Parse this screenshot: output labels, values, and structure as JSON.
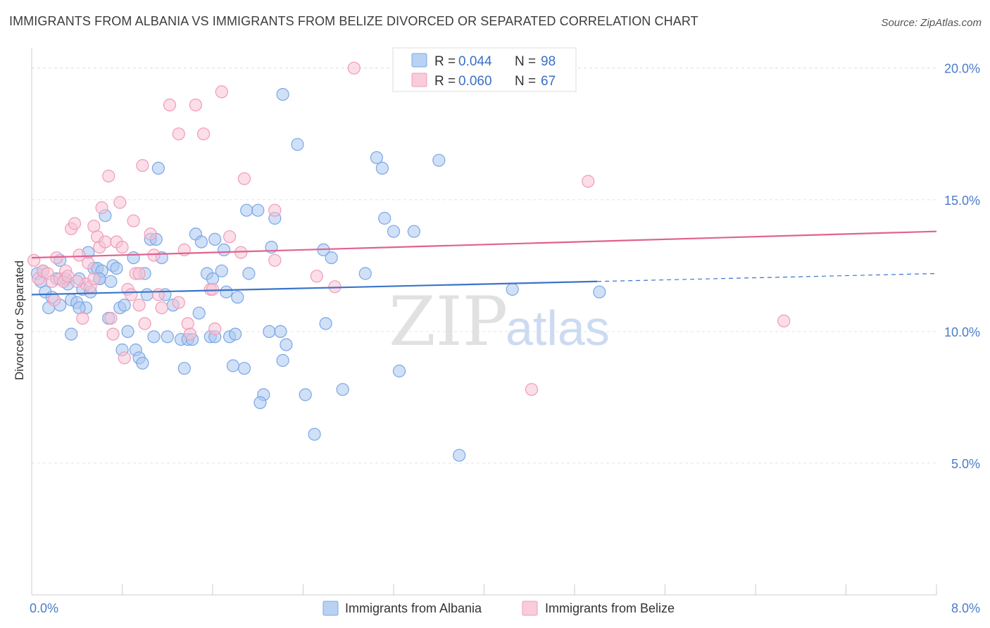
{
  "header": {
    "title": "IMMIGRANTS FROM ALBANIA VS IMMIGRANTS FROM BELIZE DIVORCED OR SEPARATED CORRELATION CHART",
    "source": "Source: ZipAtlas.com"
  },
  "watermark": {
    "zip": "ZIP",
    "atlas": "atlas"
  },
  "chart_data": {
    "type": "scatter",
    "ylabel": "Divorced or Separated",
    "xlim": [
      0,
      8
    ],
    "ylim": [
      0,
      20
    ],
    "x_tick_labels": [
      {
        "value": 0,
        "label": "0.0%"
      },
      {
        "value": 8,
        "label": "8.0%"
      }
    ],
    "y_tick_labels": [
      {
        "value": 5,
        "label": "5.0%"
      },
      {
        "value": 10,
        "label": "10.0%"
      },
      {
        "value": 15,
        "label": "15.0%"
      },
      {
        "value": 20,
        "label": "20.0%"
      }
    ],
    "grid": true,
    "legend_position": "top-center",
    "legend": [
      {
        "r_label": "R = ",
        "r_value": "0.044",
        "n_label": "N = ",
        "n_value": "98"
      },
      {
        "r_label": "R = ",
        "r_value": "0.060",
        "n_label": "N = ",
        "n_value": "67"
      }
    ],
    "series": [
      {
        "name": "Immigrants from Albania",
        "color": "#7aa7e6",
        "fill": "#a9c6f0",
        "line_color": "#3a74c9",
        "trend": {
          "x0": 0,
          "y0": 11.4,
          "x1": 5.0,
          "y1": 11.9,
          "dash_to_x": 8.0,
          "dash_to_y": 12.2
        },
        "points": [
          [
            0.05,
            12.2
          ],
          [
            0.08,
            11.9
          ],
          [
            0.1,
            12.3
          ],
          [
            0.12,
            11.5
          ],
          [
            0.15,
            10.9
          ],
          [
            0.18,
            11.3
          ],
          [
            0.22,
            12.0
          ],
          [
            0.25,
            12.7
          ],
          [
            0.25,
            11.0
          ],
          [
            0.3,
            12.0
          ],
          [
            0.32,
            11.8
          ],
          [
            0.35,
            11.2
          ],
          [
            0.35,
            9.9
          ],
          [
            0.4,
            11.1
          ],
          [
            0.42,
            12.0
          ],
          [
            0.45,
            11.6
          ],
          [
            0.48,
            10.9
          ],
          [
            0.5,
            13.0
          ],
          [
            0.52,
            11.5
          ],
          [
            0.55,
            12.4
          ],
          [
            0.58,
            12.4
          ],
          [
            0.6,
            12.0
          ],
          [
            0.62,
            12.3
          ],
          [
            0.65,
            14.4
          ],
          [
            0.68,
            10.5
          ],
          [
            0.72,
            12.5
          ],
          [
            0.75,
            12.4
          ],
          [
            0.78,
            10.9
          ],
          [
            0.8,
            9.3
          ],
          [
            0.82,
            11.0
          ],
          [
            0.85,
            10.0
          ],
          [
            0.9,
            12.8
          ],
          [
            0.92,
            9.3
          ],
          [
            0.95,
            9.0
          ],
          [
            0.98,
            8.8
          ],
          [
            1.0,
            12.2
          ],
          [
            1.02,
            11.4
          ],
          [
            1.05,
            13.5
          ],
          [
            1.08,
            9.8
          ],
          [
            1.1,
            13.5
          ],
          [
            1.12,
            16.2
          ],
          [
            1.15,
            12.8
          ],
          [
            1.18,
            11.4
          ],
          [
            1.2,
            9.8
          ],
          [
            1.25,
            11.0
          ],
          [
            1.32,
            9.7
          ],
          [
            1.35,
            8.6
          ],
          [
            1.38,
            9.7
          ],
          [
            1.42,
            9.7
          ],
          [
            1.45,
            13.7
          ],
          [
            1.48,
            10.7
          ],
          [
            1.5,
            13.4
          ],
          [
            1.55,
            12.2
          ],
          [
            1.58,
            9.8
          ],
          [
            1.6,
            12.0
          ],
          [
            1.62,
            13.5
          ],
          [
            1.68,
            12.3
          ],
          [
            1.7,
            13.1
          ],
          [
            1.72,
            11.5
          ],
          [
            1.75,
            9.8
          ],
          [
            1.78,
            8.7
          ],
          [
            1.8,
            9.9
          ],
          [
            1.82,
            11.3
          ],
          [
            1.88,
            8.6
          ],
          [
            1.9,
            14.6
          ],
          [
            1.92,
            12.2
          ],
          [
            2.0,
            14.6
          ],
          [
            2.05,
            7.6
          ],
          [
            2.02,
            7.3
          ],
          [
            2.1,
            10.0
          ],
          [
            2.12,
            13.2
          ],
          [
            2.15,
            14.3
          ],
          [
            2.2,
            10.0
          ],
          [
            2.22,
            8.9
          ],
          [
            2.25,
            9.5
          ],
          [
            2.22,
            19.0
          ],
          [
            2.35,
            17.1
          ],
          [
            2.42,
            7.6
          ],
          [
            2.5,
            6.1
          ],
          [
            2.58,
            13.1
          ],
          [
            2.6,
            10.3
          ],
          [
            2.65,
            12.8
          ],
          [
            2.75,
            7.8
          ],
          [
            2.95,
            12.2
          ],
          [
            3.05,
            16.6
          ],
          [
            3.1,
            16.2
          ],
          [
            3.12,
            14.3
          ],
          [
            3.2,
            13.8
          ],
          [
            3.25,
            8.5
          ],
          [
            3.38,
            13.8
          ],
          [
            3.6,
            16.5
          ],
          [
            3.78,
            5.3
          ],
          [
            4.25,
            11.6
          ],
          [
            5.02,
            11.5
          ],
          [
            1.62,
            9.8
          ],
          [
            0.7,
            11.9
          ],
          [
            0.6,
            12.0
          ],
          [
            0.42,
            10.9
          ]
        ]
      },
      {
        "name": "Immigrants from Belize",
        "color": "#f09bb8",
        "fill": "#f7c3d4",
        "line_color": "#e0628f",
        "trend": {
          "x0": 0,
          "y0": 12.8,
          "x1": 8.0,
          "y1": 13.8
        },
        "points": [
          [
            0.02,
            12.7
          ],
          [
            0.06,
            12.0
          ],
          [
            0.1,
            12.3
          ],
          [
            0.14,
            12.2
          ],
          [
            0.18,
            11.9
          ],
          [
            0.22,
            12.8
          ],
          [
            0.25,
            12.0
          ],
          [
            0.28,
            11.9
          ],
          [
            0.3,
            12.3
          ],
          [
            0.35,
            13.9
          ],
          [
            0.38,
            14.1
          ],
          [
            0.42,
            12.9
          ],
          [
            0.45,
            10.5
          ],
          [
            0.48,
            11.8
          ],
          [
            0.5,
            12.6
          ],
          [
            0.52,
            11.7
          ],
          [
            0.55,
            14.0
          ],
          [
            0.58,
            13.6
          ],
          [
            0.6,
            13.2
          ],
          [
            0.62,
            14.7
          ],
          [
            0.65,
            13.4
          ],
          [
            0.68,
            15.9
          ],
          [
            0.7,
            10.5
          ],
          [
            0.72,
            9.9
          ],
          [
            0.75,
            13.4
          ],
          [
            0.78,
            14.9
          ],
          [
            0.8,
            13.2
          ],
          [
            0.82,
            9.0
          ],
          [
            0.85,
            11.6
          ],
          [
            0.88,
            11.4
          ],
          [
            0.9,
            14.2
          ],
          [
            0.92,
            12.2
          ],
          [
            0.95,
            11.0
          ],
          [
            0.98,
            16.3
          ],
          [
            1.0,
            10.3
          ],
          [
            1.05,
            13.7
          ],
          [
            1.08,
            12.9
          ],
          [
            1.12,
            11.4
          ],
          [
            1.15,
            10.9
          ],
          [
            1.22,
            18.6
          ],
          [
            1.3,
            17.5
          ],
          [
            1.35,
            13.1
          ],
          [
            1.38,
            10.3
          ],
          [
            1.4,
            9.9
          ],
          [
            1.45,
            18.6
          ],
          [
            1.52,
            17.5
          ],
          [
            1.58,
            11.6
          ],
          [
            1.62,
            10.1
          ],
          [
            1.68,
            19.1
          ],
          [
            1.75,
            13.6
          ],
          [
            1.85,
            13.0
          ],
          [
            1.88,
            15.8
          ],
          [
            2.15,
            12.7
          ],
          [
            2.15,
            14.6
          ],
          [
            2.52,
            12.1
          ],
          [
            2.68,
            11.7
          ],
          [
            2.85,
            20.0
          ],
          [
            4.42,
            7.8
          ],
          [
            4.92,
            15.7
          ],
          [
            6.65,
            10.4
          ],
          [
            0.32,
            12.1
          ],
          [
            0.2,
            11.2
          ],
          [
            0.4,
            11.9
          ],
          [
            0.55,
            12.0
          ],
          [
            0.95,
            12.2
          ],
          [
            1.3,
            11.1
          ],
          [
            1.6,
            11.6
          ]
        ]
      }
    ]
  }
}
